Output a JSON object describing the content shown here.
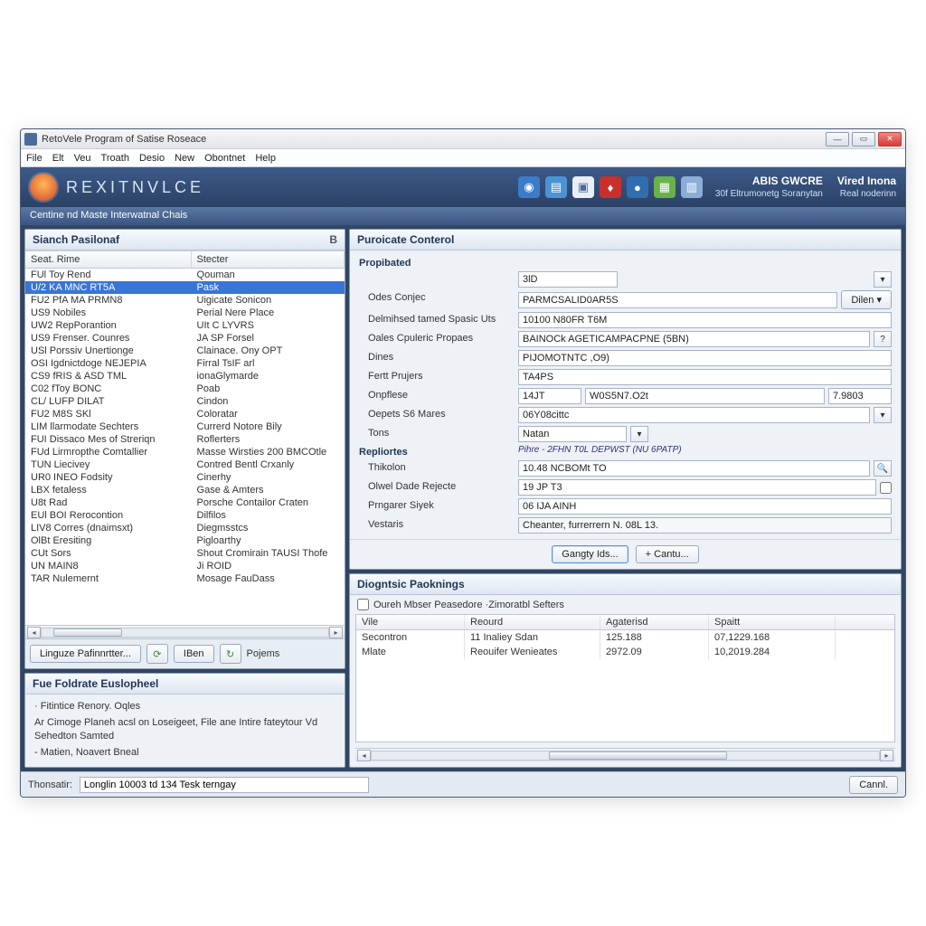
{
  "window": {
    "title": "RetoVele Program of Satise Roseace"
  },
  "menu": [
    "File",
    "Elt",
    "Veu",
    "Troath",
    "Desio",
    "New",
    "Obontnet",
    "Help"
  ],
  "brand": {
    "name": "REXITNVLCE"
  },
  "toolbar_icons": [
    {
      "name": "globe-icon",
      "glyph": "◉",
      "bg": "#3b7cc9"
    },
    {
      "name": "page-icon",
      "glyph": "▤",
      "bg": "#4a94d6"
    },
    {
      "name": "bag-icon",
      "glyph": "▣",
      "bg": "#e9eef5"
    },
    {
      "name": "shield-icon",
      "glyph": "♦",
      "bg": "#c9302c"
    },
    {
      "name": "world-icon",
      "glyph": "●",
      "bg": "#2f6fb0"
    },
    {
      "name": "note-icon",
      "glyph": "▦",
      "bg": "#67b34a"
    },
    {
      "name": "sheet-icon",
      "glyph": "▥",
      "bg": "#8aaed6"
    }
  ],
  "user": {
    "main": "ABIS GWCRE",
    "line2": "30f Eltrumonetg Soranytan",
    "right_main": "Vired Inona",
    "right_sub": "Real noderinn"
  },
  "breadcrumb": "Centine nd Maste Interwatnal Chais",
  "search_panel": {
    "title": "Sianch Pasilonaf",
    "badge": "B",
    "columns": [
      "Seat. Rime",
      "Stecter"
    ],
    "rows": [
      [
        "FUl Toy Rend",
        "Qouman",
        false
      ],
      [
        "U/2 KA MNC RT5A",
        "Pask",
        true
      ],
      [
        "FU2 PfA MA PRMN8",
        "Uigicate Sonicon",
        false
      ],
      [
        "US9 Nobiles",
        "Perial Nere Place",
        false
      ],
      [
        "UW2 RepPorantion",
        "UIt C LYVRS",
        false
      ],
      [
        "US9 Frenser. Counres",
        "JA SP Forsel",
        false
      ],
      [
        "USl Porssiv Unertionge",
        "Clainace. Ony OPT",
        false
      ],
      [
        "OSI Igdnictdoge NEJEPIA",
        "Firral TsIF arl",
        false
      ],
      [
        "CS9 fRIS & ASD TML",
        "ionaGlymarde",
        false
      ],
      [
        "C02 fToy BONC",
        "Poab",
        false
      ],
      [
        "CL/ LUFP DILAT",
        "Cindon",
        false
      ],
      [
        "FU2 M8S SKl",
        "Coloratar",
        false
      ],
      [
        "LIM llarmodate Sechters",
        "Currerd Notore Bily",
        false
      ],
      [
        "FUI Dissaco Mes of Streriqn",
        "Roflerters",
        false
      ],
      [
        "FUd Lirmropthe Comtallier",
        "Masse Wirsties 200 BMCOtle",
        false
      ],
      [
        "TUN Liecivey",
        "Contred Bentl Crxanly",
        false
      ],
      [
        "UR0 INEO Fodsity",
        "Cinerhy",
        false
      ],
      [
        "LBX fetaless",
        "Gase & Amters",
        false
      ],
      [
        "U8t Rad",
        "Porsche Contailor Craten",
        false
      ],
      [
        "EUl BOI Rerocontion",
        "Dilfilos",
        false
      ],
      [
        "LIV8 Corres (dnaimsxt)",
        "Diegmsstcs",
        false
      ],
      [
        "OlBt Eresiting",
        "Pigloarthy",
        false
      ],
      [
        "CUt Sors",
        "Shout Cromirain TAUSI Thofe",
        false
      ],
      [
        "UN MAIN8",
        "Ji ROID",
        false
      ],
      [
        "TAR Nulemernt",
        "Mosage FauDass",
        false
      ]
    ],
    "buttons": {
      "params": "Linguze Pafinnrtter...",
      "ben": "IBen",
      "projects": "Pojems"
    }
  },
  "notes_panel": {
    "title": "Fue Foldrate Euslopheel",
    "lines": [
      "· Fitintice Renory. Oqles",
      "Ar   Cimoge Planeh acsl on Loseigeet, File ane Intire fateytour Vd Sehedton Samted",
      "- Matien, Noavert Bneal"
    ]
  },
  "form_panel": {
    "title": "Puroicate Conterol",
    "section1": "Propibated",
    "fields": [
      {
        "label": "",
        "value": "3lD",
        "extra_btn": true
      },
      {
        "label": "Odes Conjec",
        "value": "PARMCSALID0AR5S",
        "dropdown": "Dilen"
      },
      {
        "label": "Delmihsed tamed Spasic Uts",
        "value": "10100 N80FR T6M"
      },
      {
        "label": "Oales Cpuleric Propaes",
        "value": "BAINOCk AGETICAMPACPNE (5BN)",
        "help": true
      },
      {
        "label": "Dines",
        "value": "PIJOMOTNTC ,O9)"
      },
      {
        "label": "Fertt Prujers",
        "value": "TA4PS"
      },
      {
        "label": "Onpflese",
        "triple": [
          "14JT",
          "W0S5N7.O2t",
          "7.9803"
        ]
      },
      {
        "label": "Oepets S6 Mares",
        "value": "06Y08cittc",
        "wide_dd": true
      }
    ],
    "tons": {
      "label": "Tons",
      "value": "Natan"
    },
    "section2": "Repliortes",
    "section2_note": "Pihre - 2FHN T0L DEPWST (NU 6PATP)",
    "fields2": [
      {
        "label": "Thikolon",
        "value": "10.48 NCBOMt TO",
        "search": true
      },
      {
        "label": "Olwel Dade Rejecte",
        "value": "19 JP T3",
        "check": true
      },
      {
        "label": "Prngarer Siyek",
        "value": "06 IJA AINH"
      },
      {
        "label": "Vestaris",
        "value": "Cheanter, furrerrern N. 08L 13.",
        "disabled": true
      }
    ],
    "buttons": {
      "a": "Gangty Ids...",
      "b": "+   Cantu..."
    }
  },
  "diag_panel": {
    "title": "Diogntsic Paoknings",
    "filter": "Oureh Mbser Peasedore ·Zimoratbl Sefters",
    "columns": [
      "Vile",
      "Reourd",
      "Agaterisd",
      "Spaitt"
    ],
    "rows": [
      [
        "Secontron",
        "11 Inaliey Sdan",
        "125.188",
        "07,1229.168"
      ],
      [
        "Mlate",
        "Reouifer Wenieates",
        "2972.09",
        "10,2019.284"
      ]
    ]
  },
  "status": {
    "label": "Thonsatir:",
    "value": "Longlin 10003 td 134 Tesk terngay",
    "close_btn": "Cannl."
  }
}
